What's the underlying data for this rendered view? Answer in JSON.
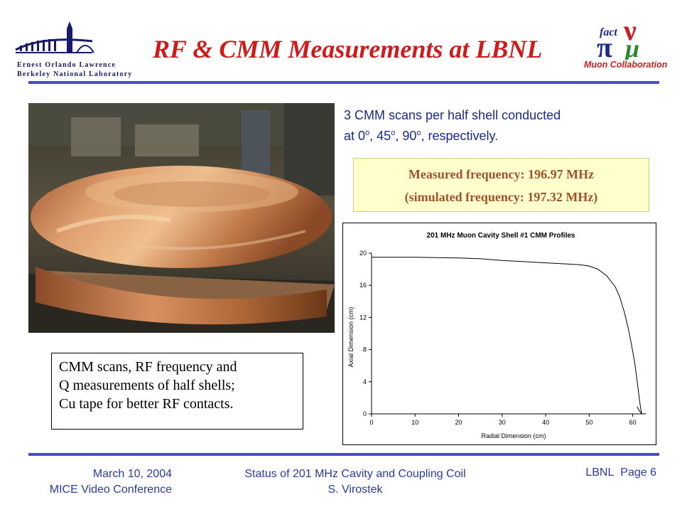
{
  "slide": {
    "title": "RF & CMM Measurements at LBNL"
  },
  "logos": {
    "lbnl_line1": "Ernest Orlando Lawrence",
    "lbnl_line2": "Berkeley National Laboratory",
    "muon_text": "Muon Collaboration",
    "muon_fact": "fact"
  },
  "note": {
    "line1": "3 CMM scans per half shell conducted",
    "line2_prefix": "at 0",
    "line2_sep1": ", 45",
    "line2_sep2": ", 90",
    "line2_suffix": ", respectively.",
    "degree_mark": "o"
  },
  "frequency": {
    "measured": "Measured frequency: 196.97 MHz",
    "simulated": "(simulated frequency: 197.32 MHz)"
  },
  "caption": {
    "line1": "CMM scans, RF frequency and",
    "line2": "Q measurements of half shells;",
    "line3": "Cu tape for better RF contacts."
  },
  "footer": {
    "date": "March 10, 2004",
    "event": "MICE Video Conference",
    "talk_title": "Status of 201 MHz Cavity and Coupling Coil",
    "author": "S. Virostek",
    "lab": "LBNL",
    "page": "Page 6"
  },
  "chart_data": {
    "type": "line",
    "title": "201 MHz Muon Cavity Shell #1 CMM Profiles",
    "xlabel": "Radial Dimension (cm)",
    "ylabel": "Axial Dimension (cm)",
    "xlim": [
      0,
      63
    ],
    "ylim": [
      0,
      20
    ],
    "xticks": [
      0,
      10,
      20,
      30,
      40,
      50,
      60
    ],
    "yticks": [
      0,
      4,
      8,
      12,
      16,
      20
    ],
    "grid": false,
    "series": [
      {
        "x": [
          0,
          10,
          20,
          25,
          30,
          35,
          40,
          45,
          48,
          50,
          52,
          54,
          56,
          57,
          58,
          59,
          60,
          60.5,
          61,
          61.5,
          61.8,
          62.0,
          62.1
        ],
        "y": [
          19.5,
          19.5,
          19.4,
          19.3,
          19.1,
          18.95,
          18.8,
          18.65,
          18.55,
          18.4,
          18.0,
          17.2,
          15.8,
          14.6,
          12.8,
          10.6,
          7.8,
          6.2,
          4.2,
          2.0,
          0.8,
          0.2,
          0.0
        ]
      },
      {
        "x": [
          61.0,
          61.3,
          61.6,
          61.9,
          62.1
        ],
        "y": [
          0.9,
          0.6,
          0.35,
          0.12,
          0.0
        ]
      }
    ]
  }
}
